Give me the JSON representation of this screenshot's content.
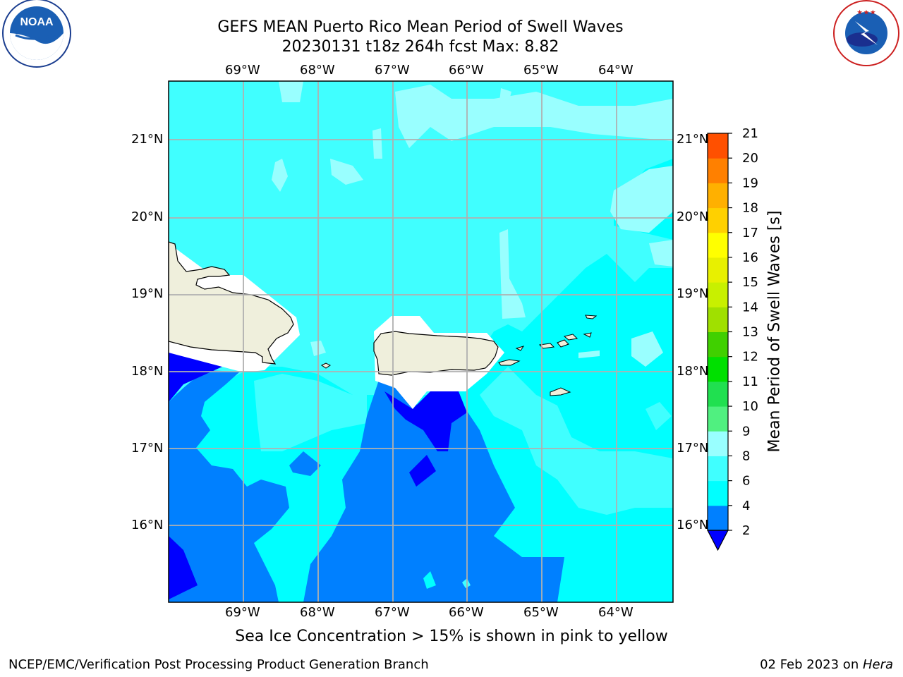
{
  "header": {
    "title_line1": "GEFS MEAN Puerto Rico Mean Period of Swell Waves",
    "title_line2": "20230131 t18z 264h fcst   Max: 8.82"
  },
  "logos": {
    "left": {
      "name": "noaa-logo",
      "text": "NOAA"
    },
    "right": {
      "name": "nws-logo",
      "text": "NATIONAL WEATHER SERVICE"
    }
  },
  "map": {
    "lon_labels": [
      "69°W",
      "68°W",
      "67°W",
      "66°W",
      "65°W",
      "64°W"
    ],
    "lat_labels": [
      "21°N",
      "20°N",
      "19°N",
      "18°N",
      "17°N",
      "16°N"
    ],
    "ocean_color": "#00ffff",
    "land_color": "#efefdc"
  },
  "colorbar": {
    "label": "Mean Period of Swell Waves [s]",
    "ticks": [
      "2",
      "4",
      "6",
      "8",
      "9",
      "10",
      "11",
      "12",
      "13",
      "14",
      "15",
      "16",
      "17",
      "18",
      "19",
      "20",
      "21"
    ],
    "colors": [
      "#0080ff",
      "#00ffff",
      "#40ffff",
      "#99ffff",
      "#50f080",
      "#20e050",
      "#00e000",
      "#40d000",
      "#a0e000",
      "#c8f000",
      "#e8f000",
      "#ffff00",
      "#ffd000",
      "#ffb000",
      "#ff8000",
      "#ff5000",
      "#ff2000",
      "#ff0000"
    ],
    "extend_color": "#0000ff"
  },
  "footer": {
    "note": "Sea Ice Concentration > 15% is shown in pink to yellow",
    "credit_left": "NCEP/EMC/Verification Post Processing Product Generation Branch",
    "credit_right_date": "02 Feb 2023 on ",
    "credit_right_host": "Hera"
  }
}
